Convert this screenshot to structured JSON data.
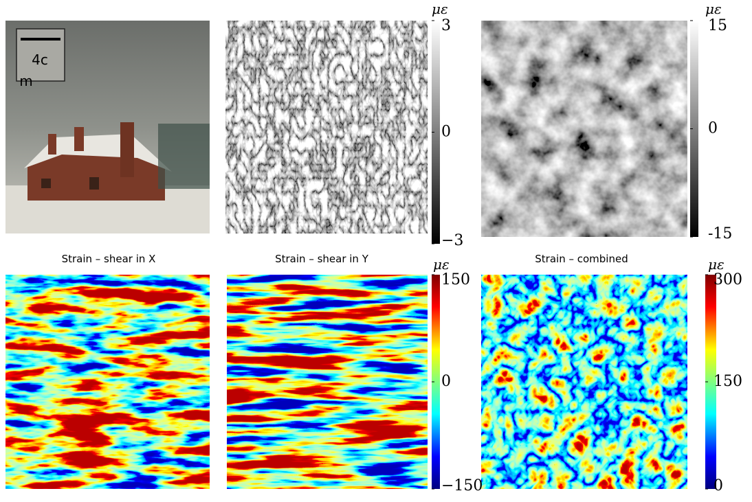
{
  "scale_bar": {
    "label_line1": "4c",
    "label_line2": "m"
  },
  "top_row": {
    "colorbars": [
      {
        "unit": "με",
        "range": [
          -3,
          3
        ],
        "ticks": [
          {
            "value": 3,
            "label": "3"
          },
          0,
          {
            "value": -3,
            "label": "−3"
          }
        ]
      },
      {
        "unit": "με",
        "range": [
          -15,
          15
        ],
        "ticks": [
          15,
          0,
          -15
        ]
      }
    ]
  },
  "bottom_row": {
    "titles": [
      "Strain – shear in X",
      "Strain – shear in Y",
      "Strain – combined"
    ],
    "colorbars": [
      {
        "unit": "με",
        "range": [
          -150,
          150
        ],
        "ticks": [
          150,
          0,
          {
            "value": -150,
            "label": "−150"
          }
        ]
      },
      {
        "unit": "με",
        "range": [
          0,
          300
        ],
        "ticks": [
          300,
          150,
          0
        ]
      }
    ]
  }
}
